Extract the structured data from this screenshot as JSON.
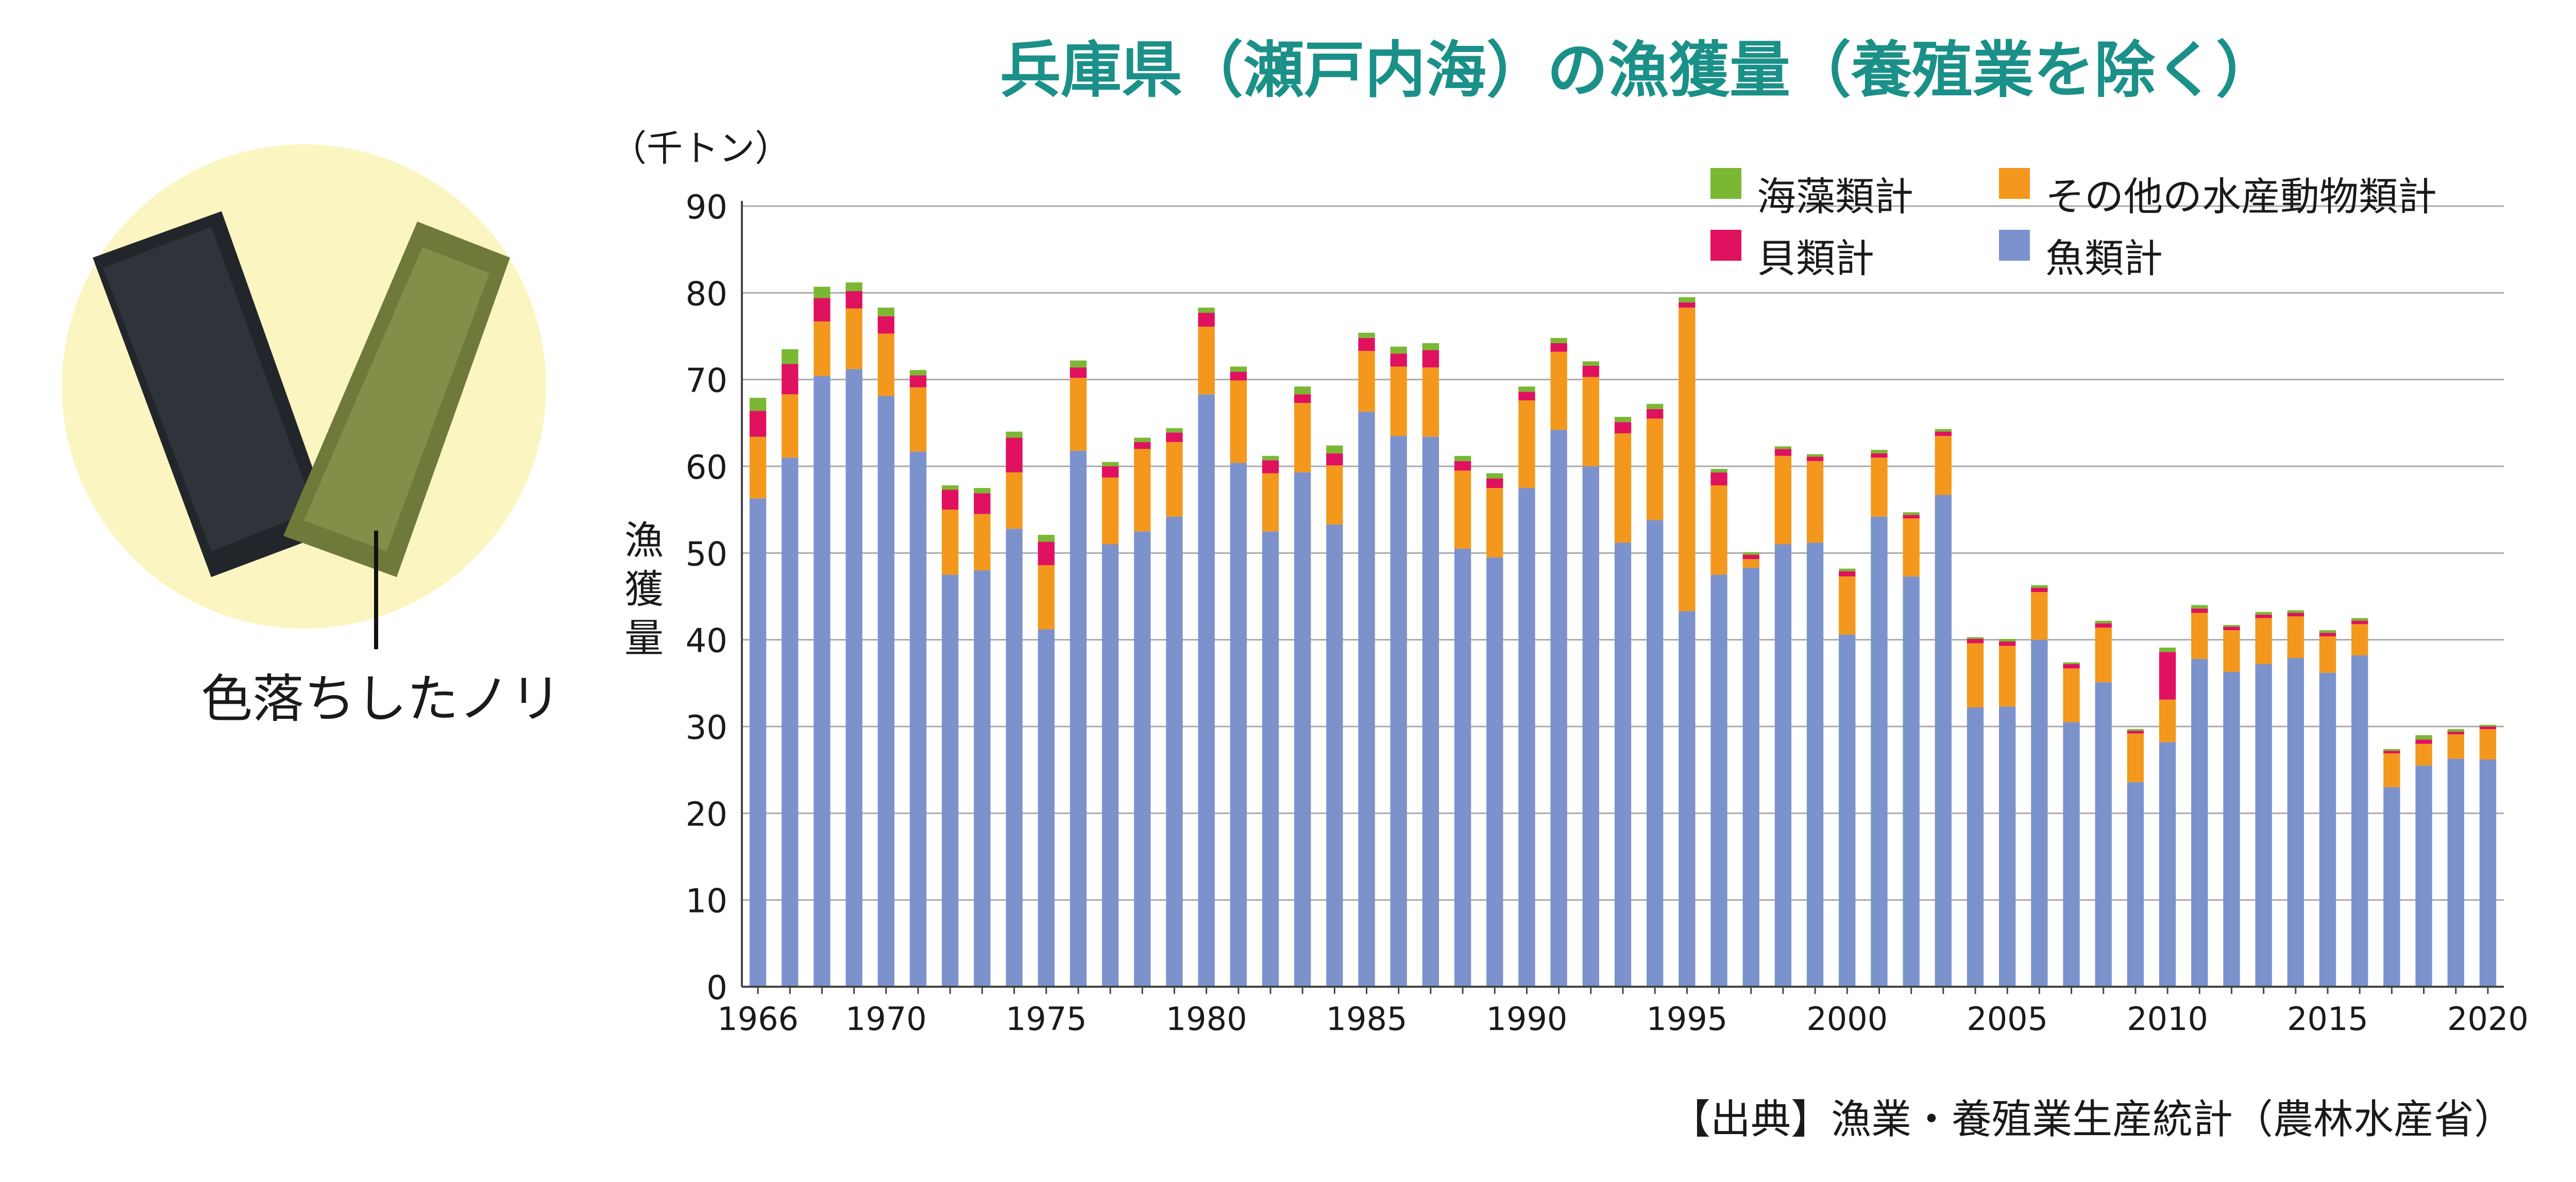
{
  "title": "兵庫県（瀬戸内海）の漁獲量（養殖業を除く）",
  "photo_caption": "色落ちしたノリ",
  "source_note": "【出典】漁業・養殖業生産統計（農林水産省）",
  "colors": {
    "title": "#1a9088",
    "seaweed": "#7ab833",
    "shellfish": "#e0115f",
    "other": "#f3981c",
    "fish": "#7b92cd",
    "photo_bg": "#fbf5c1",
    "grid": "#aaaaaa"
  },
  "icons": {
    "photo_left": "black-nori-sheet",
    "photo_right": "faded-nori-sheet"
  },
  "chart_data": {
    "type": "bar",
    "stacked": true,
    "unit_label": "（千トン）",
    "ylabel": "漁獲量",
    "ylim": [
      0,
      90
    ],
    "yticks": [
      "0",
      "10",
      "20",
      "30",
      "40",
      "50",
      "60",
      "70",
      "80",
      "90"
    ],
    "xtick_labels": [
      "1966",
      "1970",
      "1975",
      "1980",
      "1985",
      "1990",
      "1995",
      "2000",
      "2005",
      "2010",
      "2015",
      "2020"
    ],
    "grid": true,
    "legend_position": "top-right",
    "categories": [
      "1966",
      "1967",
      "1968",
      "1969",
      "1970",
      "1971",
      "1972",
      "1973",
      "1974",
      "1975",
      "1976",
      "1977",
      "1978",
      "1979",
      "1980",
      "1981",
      "1982",
      "1983",
      "1984",
      "1985",
      "1986",
      "1987",
      "1988",
      "1989",
      "1990",
      "1991",
      "1992",
      "1993",
      "1994",
      "1995",
      "1996",
      "1997",
      "1998",
      "1999",
      "2000",
      "2001",
      "2002",
      "2003",
      "2004",
      "2005",
      "2006",
      "2007",
      "2008",
      "2009",
      "2010",
      "2011",
      "2012",
      "2013",
      "2014",
      "2015",
      "2016",
      "2017",
      "2018",
      "2019",
      "2020"
    ],
    "series": [
      {
        "name": "魚類計",
        "values": [
          56.3,
          61,
          70.4,
          71.2,
          68.1,
          61.7,
          47.5,
          48,
          52.8,
          41.2,
          61.8,
          51,
          52.5,
          54.2,
          68.3,
          60.4,
          52.5,
          59.3,
          53.3,
          66.3,
          63.5,
          63.4,
          50.5,
          49.5,
          57.5,
          64.2,
          60,
          51.2,
          53.8,
          43.3,
          47.5,
          48.3,
          51,
          51.2,
          40.6,
          54.2,
          47.3,
          56.7,
          32.2,
          32.3,
          40,
          30.5,
          35.1,
          23.6,
          28.2,
          37.8,
          36.3,
          37.2,
          37.9,
          36.2,
          38.2,
          23,
          25.5,
          26.3,
          26.2
        ]
      },
      {
        "name": "その他の水産動物類計",
        "values": [
          7.1,
          7.3,
          6.3,
          7,
          7.2,
          7.4,
          7.5,
          6.5,
          6.5,
          7.4,
          8.4,
          7.7,
          9.5,
          8.6,
          7.8,
          9.5,
          6.7,
          8,
          6.8,
          7,
          8,
          8,
          9,
          8,
          10.1,
          9,
          10.3,
          12.6,
          11.7,
          35,
          10.3,
          1,
          10.2,
          9.4,
          6.7,
          6.8,
          6.7,
          6.8,
          7.4,
          7,
          5.5,
          6.2,
          6.3,
          5.6,
          4.9,
          5.3,
          4.8,
          5.3,
          4.8,
          4.2,
          3.6,
          3.9,
          2.5,
          2.8,
          3.5
        ]
      },
      {
        "name": "貝類計",
        "values": [
          3,
          3.5,
          2.7,
          2,
          2,
          1.4,
          2.3,
          2.4,
          4,
          2.7,
          1.2,
          1.3,
          0.8,
          1.1,
          1.6,
          1,
          1.5,
          1,
          1.4,
          1.5,
          1.5,
          2,
          1.1,
          1.1,
          1,
          1,
          1.3,
          1.3,
          1.1,
          0.6,
          1.5,
          0.5,
          0.8,
          0.5,
          0.6,
          0.5,
          0.4,
          0.5,
          0.5,
          0.5,
          0.5,
          0.5,
          0.5,
          0.3,
          5.5,
          0.5,
          0.4,
          0.4,
          0.4,
          0.4,
          0.4,
          0.3,
          0.5,
          0.3,
          0.3
        ]
      },
      {
        "name": "海藻類計",
        "values": [
          1.5,
          1.7,
          1.3,
          1,
          1,
          0.6,
          0.5,
          0.6,
          0.7,
          0.8,
          0.8,
          0.5,
          0.5,
          0.5,
          0.6,
          0.6,
          0.5,
          0.9,
          0.9,
          0.6,
          0.8,
          0.8,
          0.6,
          0.6,
          0.6,
          0.6,
          0.5,
          0.6,
          0.6,
          0.6,
          0.4,
          0.3,
          0.3,
          0.3,
          0.3,
          0.4,
          0.3,
          0.3,
          0.2,
          0.3,
          0.3,
          0.2,
          0.3,
          0.2,
          0.5,
          0.4,
          0.2,
          0.3,
          0.3,
          0.3,
          0.3,
          0.2,
          0.5,
          0.3,
          0.2
        ]
      }
    ],
    "legend": [
      {
        "label": "海藻類計",
        "color": "#7ab833"
      },
      {
        "label": "その他の水産動物類計",
        "color": "#f3981c"
      },
      {
        "label": "貝類計",
        "color": "#e0115f"
      },
      {
        "label": "魚類計",
        "color": "#7b92cd"
      }
    ]
  }
}
